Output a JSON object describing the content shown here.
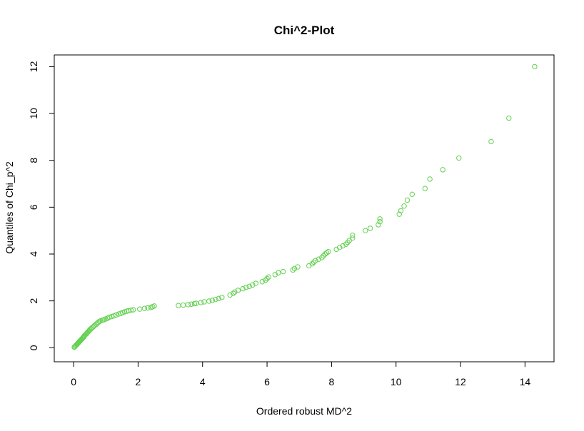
{
  "chart_data": {
    "type": "scatter",
    "title": "Chi^2-Plot",
    "xlabel": "Ordered robust MD^2",
    "ylabel": "Quantiles of Chi_p^2",
    "xlim": [
      -0.6,
      14.9
    ],
    "ylim": [
      -0.6,
      12.5
    ],
    "xticks": [
      0,
      2,
      4,
      6,
      8,
      10,
      12,
      14
    ],
    "yticks": [
      0,
      2,
      4,
      6,
      8,
      10,
      12
    ],
    "grid": false,
    "legend": "none",
    "point_color": "#61d04f",
    "series": [
      {
        "x": [
          0.02,
          0.04,
          0.06,
          0.08,
          0.1,
          0.12,
          0.14,
          0.16,
          0.18,
          0.2,
          0.22,
          0.24,
          0.26,
          0.28,
          0.3,
          0.32,
          0.34,
          0.37,
          0.4,
          0.42,
          0.45,
          0.48,
          0.5,
          0.53,
          0.56,
          0.6,
          0.63,
          0.66,
          0.7,
          0.73,
          0.76,
          0.8,
          0.84,
          0.9,
          0.95,
          1.0,
          1.05,
          1.1,
          1.18,
          1.25,
          1.32,
          1.4,
          1.47,
          1.52,
          1.58,
          1.65,
          1.7,
          1.78,
          1.85,
          2.05,
          2.2,
          2.3,
          2.4,
          2.45,
          2.5,
          3.25,
          3.4,
          3.55,
          3.65,
          3.75,
          3.8,
          3.95,
          4.05,
          4.2,
          4.3,
          4.4,
          4.5,
          4.6,
          4.85,
          4.95,
          5.0,
          5.1,
          5.25,
          5.35,
          5.45,
          5.55,
          5.65,
          5.85,
          5.95,
          6.0,
          6.05,
          6.25,
          6.35,
          6.5,
          6.8,
          6.85,
          6.95,
          7.3,
          7.4,
          7.45,
          7.5,
          7.6,
          7.7,
          7.75,
          7.8,
          7.85,
          7.9,
          8.15,
          8.25,
          8.35,
          8.45,
          8.5,
          8.55,
          8.65,
          8.65,
          9.05,
          9.2,
          9.45,
          9.5,
          9.5,
          10.1,
          10.15,
          10.25,
          10.35,
          10.5,
          10.9,
          11.05,
          11.45,
          11.95,
          12.95,
          13.5,
          14.3
        ],
        "y": [
          0.02,
          0.05,
          0.08,
          0.11,
          0.14,
          0.17,
          0.2,
          0.23,
          0.26,
          0.29,
          0.32,
          0.35,
          0.38,
          0.41,
          0.44,
          0.48,
          0.52,
          0.56,
          0.6,
          0.64,
          0.68,
          0.72,
          0.76,
          0.8,
          0.84,
          0.88,
          0.92,
          0.96,
          1.0,
          1.04,
          1.08,
          1.12,
          1.15,
          1.18,
          1.2,
          1.23,
          1.26,
          1.3,
          1.33,
          1.36,
          1.4,
          1.44,
          1.47,
          1.5,
          1.53,
          1.56,
          1.58,
          1.6,
          1.62,
          1.65,
          1.68,
          1.7,
          1.72,
          1.75,
          1.78,
          1.8,
          1.82,
          1.84,
          1.86,
          1.88,
          1.9,
          1.93,
          1.96,
          1.99,
          2.02,
          2.06,
          2.1,
          2.15,
          2.25,
          2.32,
          2.38,
          2.45,
          2.52,
          2.58,
          2.62,
          2.68,
          2.75,
          2.82,
          2.88,
          2.95,
          3.02,
          3.12,
          3.2,
          3.25,
          3.32,
          3.38,
          3.45,
          3.5,
          3.58,
          3.65,
          3.72,
          3.78,
          3.85,
          3.92,
          4.0,
          4.05,
          4.1,
          4.2,
          4.28,
          4.35,
          4.42,
          4.5,
          4.58,
          4.68,
          4.8,
          5.0,
          5.1,
          5.25,
          5.38,
          5.5,
          5.7,
          5.85,
          6.05,
          6.3,
          6.55,
          6.8,
          7.2,
          7.6,
          8.1,
          8.8,
          9.8,
          12.0
        ]
      }
    ]
  }
}
